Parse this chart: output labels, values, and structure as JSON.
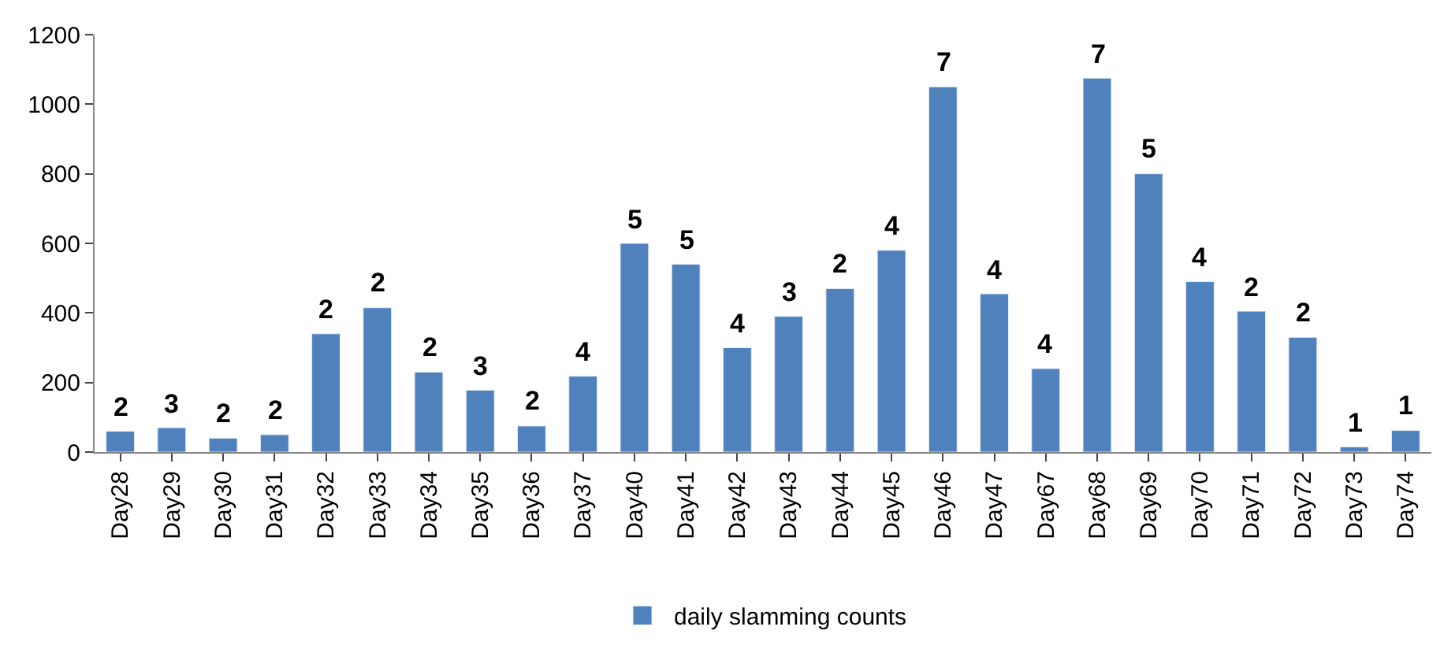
{
  "chart_data": {
    "type": "bar",
    "categories": [
      "Day28",
      "Day29",
      "Day30",
      "Day31",
      "Day32",
      "Day33",
      "Day34",
      "Day35",
      "Day36",
      "Day37",
      "Day40",
      "Day41",
      "Day42",
      "Day43",
      "Day44",
      "Day45",
      "Day46",
      "Day47",
      "Day67",
      "Day68",
      "Day69",
      "Day70",
      "Day71",
      "Day72",
      "Day73",
      "Day74"
    ],
    "series": [
      {
        "name": "daily slamming counts",
        "color": "#4f81bd",
        "values": [
          60,
          70,
          40,
          50,
          340,
          415,
          230,
          178,
          75,
          218,
          600,
          540,
          300,
          390,
          470,
          580,
          1050,
          455,
          240,
          1075,
          800,
          490,
          405,
          330,
          15,
          62
        ]
      }
    ],
    "annotations": [
      {
        "text": "2",
        "x": "Day28",
        "y": 60
      },
      {
        "text": "3",
        "x": "Day29",
        "y": 70
      },
      {
        "text": "2",
        "x": "Day30",
        "y": 40
      },
      {
        "text": "2",
        "x": "Day31",
        "y": 50
      },
      {
        "text": "2",
        "x": "Day32",
        "y": 340
      },
      {
        "text": "2",
        "x": "Day33",
        "y": 415
      },
      {
        "text": "2",
        "x": "Day34",
        "y": 230
      },
      {
        "text": "3",
        "x": "Day35",
        "y": 178
      },
      {
        "text": "2",
        "x": "Day36",
        "y": 75
      },
      {
        "text": "4",
        "x": "Day37",
        "y": 218
      },
      {
        "text": "5",
        "x": "Day40",
        "y": 600
      },
      {
        "text": "5",
        "x": "Day41",
        "y": 540
      },
      {
        "text": "4",
        "x": "Day42",
        "y": 300
      },
      {
        "text": "3",
        "x": "Day43",
        "y": 390
      },
      {
        "text": "2",
        "x": "Day44",
        "y": 470
      },
      {
        "text": "4",
        "x": "Day45",
        "y": 580
      },
      {
        "text": "7",
        "x": "Day46",
        "y": 1050
      },
      {
        "text": "4",
        "x": "Day47",
        "y": 455
      },
      {
        "text": "4",
        "x": "Day67",
        "y": 240
      },
      {
        "text": "7",
        "x": "Day68",
        "y": 1075
      },
      {
        "text": "5",
        "x": "Day69",
        "y": 800
      },
      {
        "text": "4",
        "x": "Day70",
        "y": 490
      },
      {
        "text": "2",
        "x": "Day71",
        "y": 405
      },
      {
        "text": "2",
        "x": "Day72",
        "y": 330
      },
      {
        "text": "1",
        "x": "Day73",
        "y": 15
      },
      {
        "text": "1",
        "x": "Day74",
        "y": 62
      }
    ],
    "ylim": [
      0,
      1200
    ],
    "yticks": [
      0,
      200,
      400,
      600,
      800,
      1000,
      1200
    ],
    "legend": "bottom"
  }
}
